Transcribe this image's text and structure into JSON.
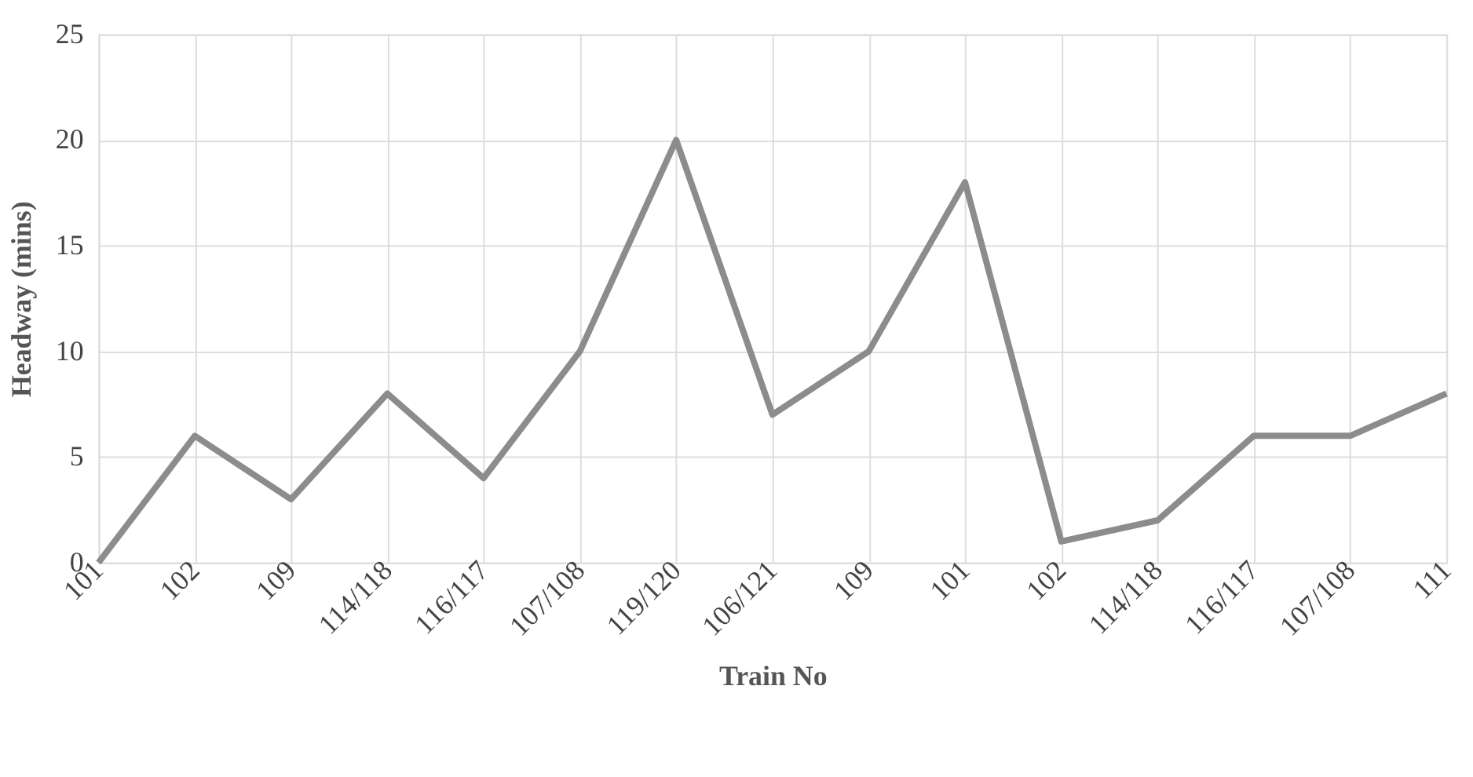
{
  "chart_data": {
    "type": "line",
    "xlabel": "Train No",
    "ylabel": "Headway (mins)",
    "categories": [
      "101",
      "102",
      "109",
      "114/118",
      "116/117",
      "107/108",
      "119/120",
      "106/121",
      "109",
      "101",
      "102",
      "114/118",
      "116/117",
      "107/108",
      "111"
    ],
    "series": [
      {
        "color": "#8c8c8c",
        "values": [
          0,
          6,
          3,
          8,
          4,
          10,
          20,
          7,
          10,
          18,
          1,
          2,
          6,
          6,
          8
        ]
      }
    ],
    "ylim": [
      0,
      25
    ],
    "yticks": [
      0,
      5,
      10,
      15,
      20,
      25
    ],
    "grid": true,
    "marker": "none",
    "line_style": "solid"
  }
}
